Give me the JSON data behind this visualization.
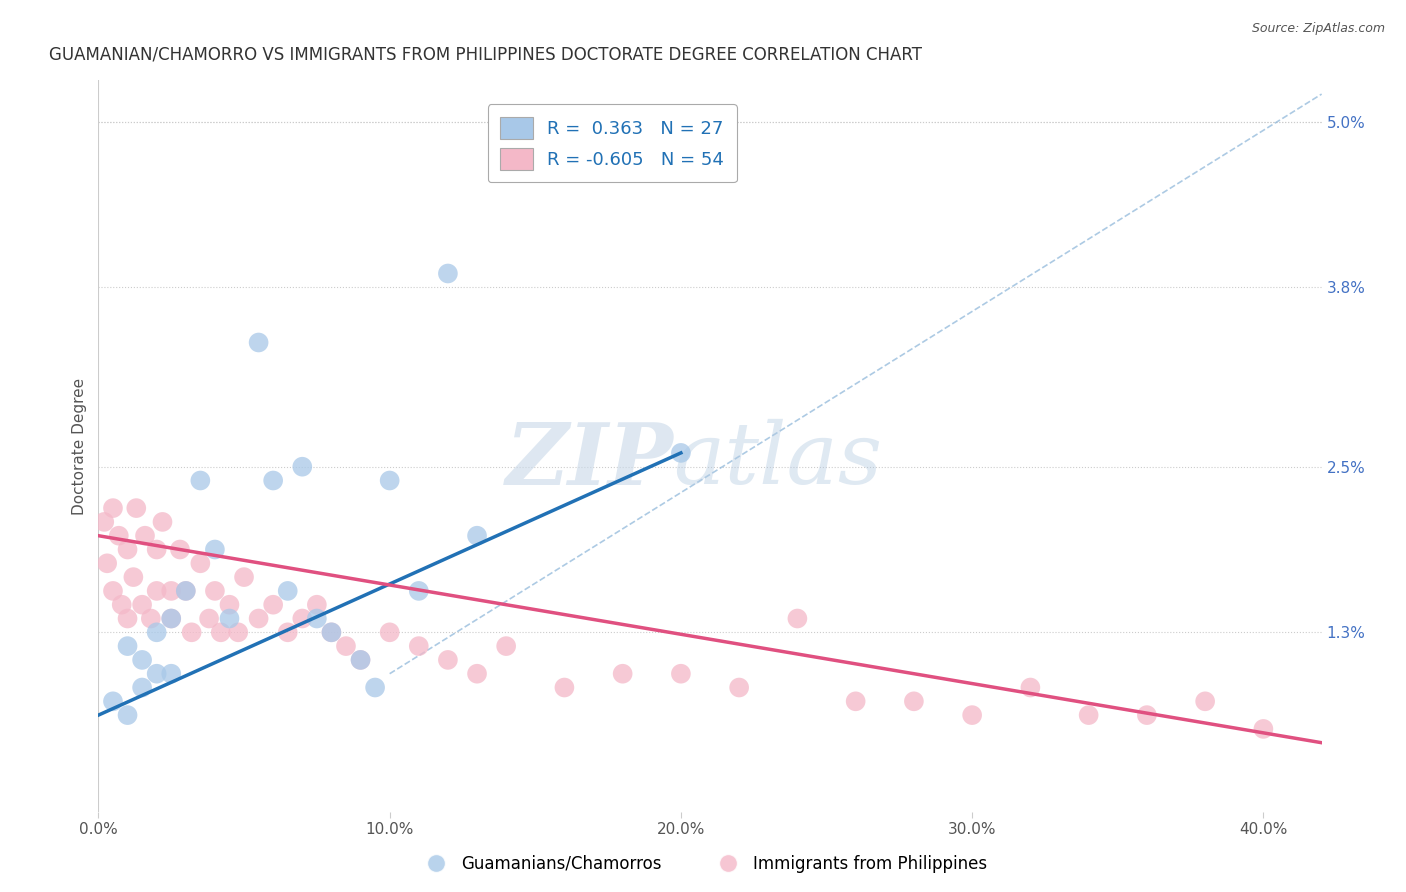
{
  "title": "GUAMANIAN/CHAMORRO VS IMMIGRANTS FROM PHILIPPINES DOCTORATE DEGREE CORRELATION CHART",
  "source": "Source: ZipAtlas.com",
  "ylabel": "Doctorate Degree",
  "ylabel_right_labels": [
    "",
    "1.3%",
    "2.5%",
    "3.8%",
    "5.0%"
  ],
  "ylabel_right_values": [
    0.0,
    0.013,
    0.025,
    0.038,
    0.05
  ],
  "xlabel_ticks": [
    0.0,
    0.1,
    0.2,
    0.3,
    0.4
  ],
  "xlabel_labels": [
    "0.0%",
    "10.0%",
    "20.0%",
    "30.0%",
    "40.0%"
  ],
  "xlim": [
    0.0,
    0.42
  ],
  "ylim": [
    0.0,
    0.053
  ],
  "r_blue": 0.363,
  "n_blue": 27,
  "r_pink": -0.605,
  "n_pink": 54,
  "color_blue": "#a8c8e8",
  "color_pink": "#f4b8c8",
  "color_blue_line": "#2171b5",
  "color_pink_line": "#e05080",
  "legend_label_blue": "Guamanians/Chamorros",
  "legend_label_pink": "Immigrants from Philippines",
  "watermark_zip": "ZIP",
  "watermark_atlas": "atlas",
  "blue_scatter_x": [
    0.005,
    0.01,
    0.01,
    0.015,
    0.015,
    0.02,
    0.02,
    0.025,
    0.025,
    0.03,
    0.035,
    0.04,
    0.045,
    0.055,
    0.06,
    0.065,
    0.07,
    0.075,
    0.08,
    0.09,
    0.095,
    0.1,
    0.11,
    0.12,
    0.13,
    0.15,
    0.2
  ],
  "blue_scatter_y": [
    0.008,
    0.012,
    0.007,
    0.011,
    0.009,
    0.013,
    0.01,
    0.014,
    0.01,
    0.016,
    0.024,
    0.019,
    0.014,
    0.034,
    0.024,
    0.016,
    0.025,
    0.014,
    0.013,
    0.011,
    0.009,
    0.024,
    0.016,
    0.039,
    0.02,
    0.048,
    0.026
  ],
  "pink_scatter_x": [
    0.002,
    0.003,
    0.005,
    0.005,
    0.007,
    0.008,
    0.01,
    0.01,
    0.012,
    0.013,
    0.015,
    0.016,
    0.018,
    0.02,
    0.02,
    0.022,
    0.025,
    0.025,
    0.028,
    0.03,
    0.032,
    0.035,
    0.038,
    0.04,
    0.042,
    0.045,
    0.048,
    0.05,
    0.055,
    0.06,
    0.065,
    0.07,
    0.075,
    0.08,
    0.085,
    0.09,
    0.1,
    0.11,
    0.12,
    0.13,
    0.14,
    0.16,
    0.18,
    0.2,
    0.22,
    0.24,
    0.26,
    0.28,
    0.3,
    0.32,
    0.34,
    0.36,
    0.38,
    0.4
  ],
  "pink_scatter_y": [
    0.021,
    0.018,
    0.022,
    0.016,
    0.02,
    0.015,
    0.019,
    0.014,
    0.017,
    0.022,
    0.015,
    0.02,
    0.014,
    0.019,
    0.016,
    0.021,
    0.016,
    0.014,
    0.019,
    0.016,
    0.013,
    0.018,
    0.014,
    0.016,
    0.013,
    0.015,
    0.013,
    0.017,
    0.014,
    0.015,
    0.013,
    0.014,
    0.015,
    0.013,
    0.012,
    0.011,
    0.013,
    0.012,
    0.011,
    0.01,
    0.012,
    0.009,
    0.01,
    0.01,
    0.009,
    0.014,
    0.008,
    0.008,
    0.007,
    0.009,
    0.007,
    0.007,
    0.008,
    0.006
  ],
  "blue_line_x": [
    0.0,
    0.2
  ],
  "blue_line_y": [
    0.007,
    0.026
  ],
  "pink_line_x": [
    0.0,
    0.42
  ],
  "pink_line_y": [
    0.02,
    0.005
  ],
  "ref_line_x": [
    0.1,
    0.42
  ],
  "ref_line_y": [
    0.01,
    0.052
  ]
}
